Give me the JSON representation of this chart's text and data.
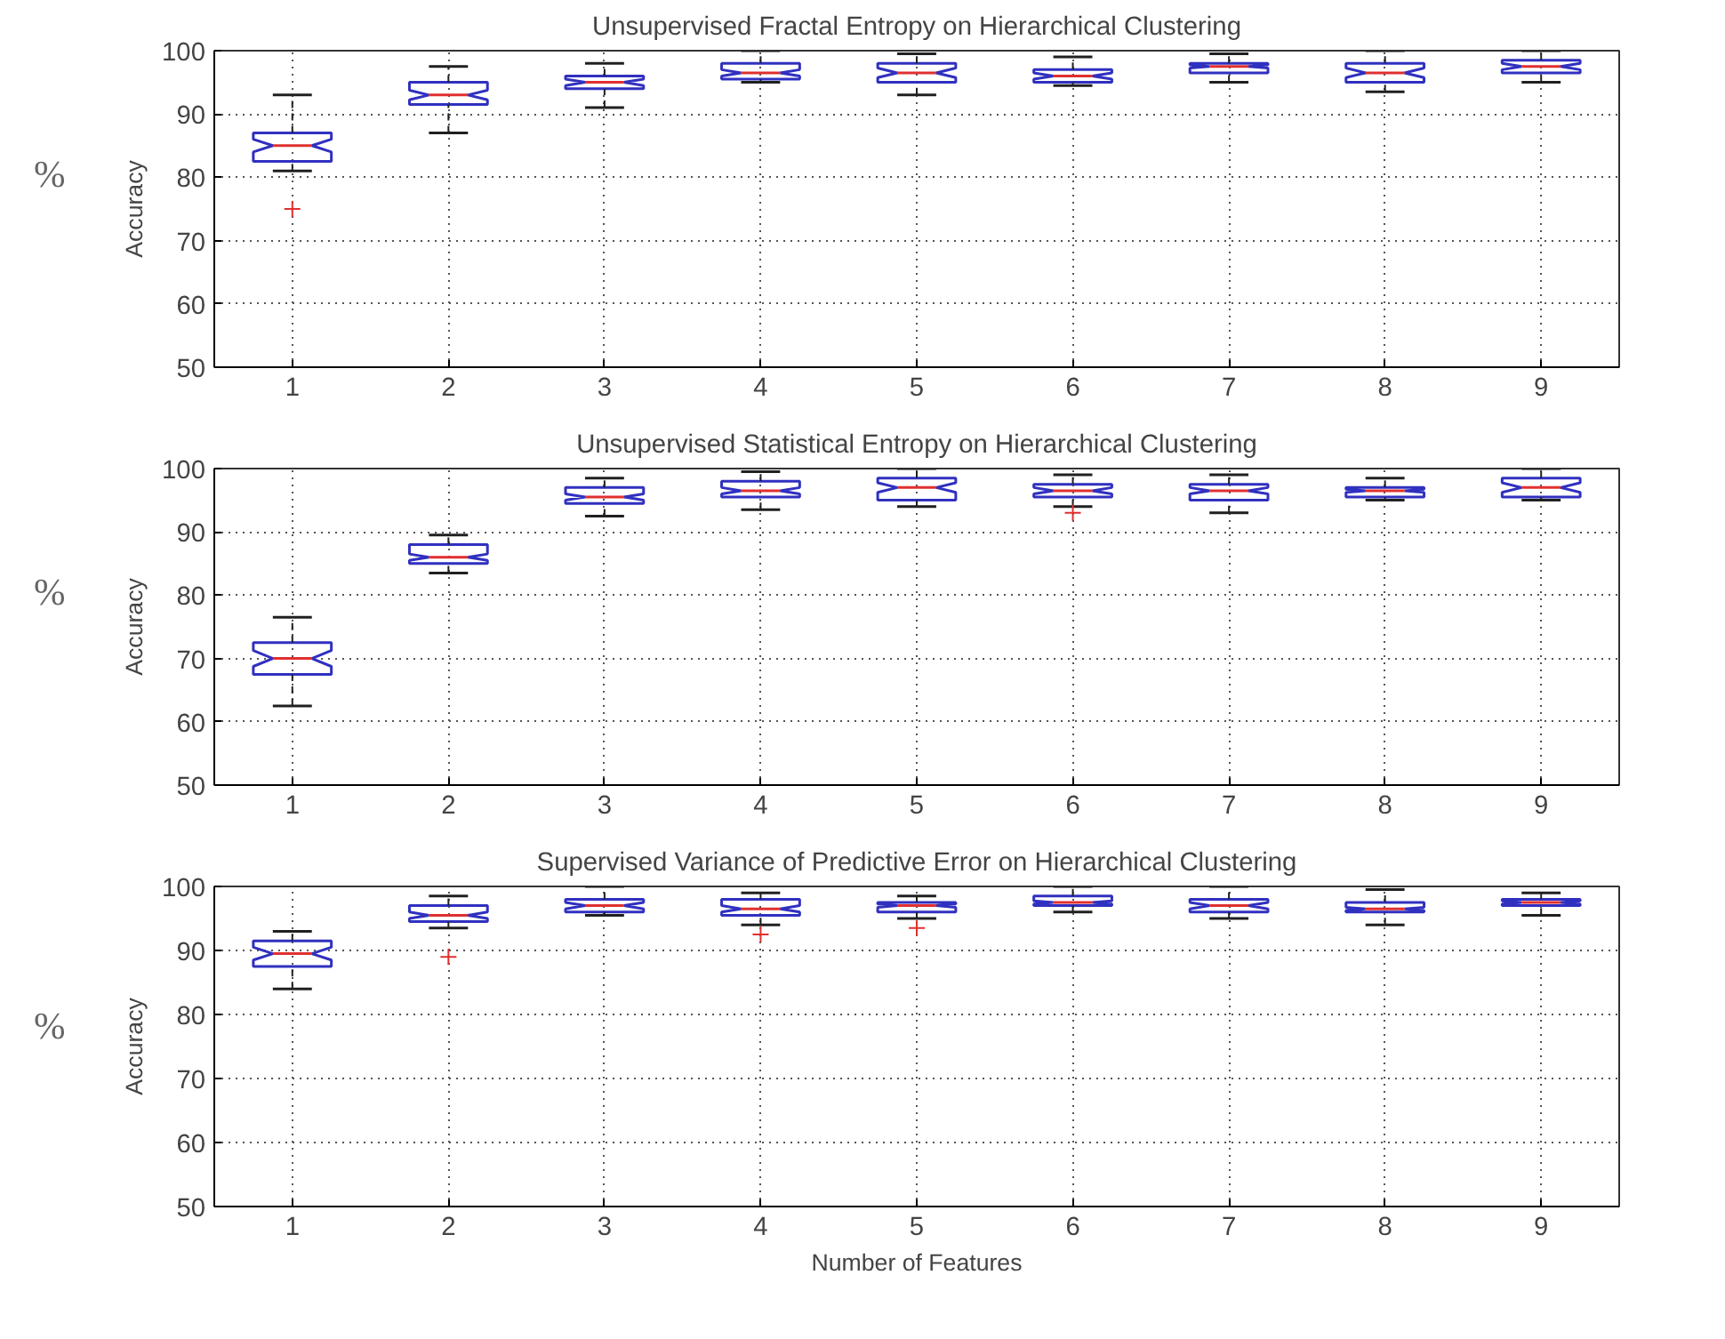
{
  "chart_data": [
    {
      "type": "box",
      "title": "Unsupervised Fractal Entropy on Hierarchical Clustering",
      "ylabel": "Accuracy",
      "annotations": [
        "%"
      ],
      "categories": [
        "1",
        "2",
        "3",
        "4",
        "5",
        "6",
        "7",
        "8",
        "9"
      ],
      "ylim": [
        50,
        100
      ],
      "yticks": [
        50,
        60,
        70,
        80,
        90,
        100
      ],
      "grid": true,
      "boxes": [
        {
          "low": 81,
          "q1": 82.5,
          "median": 85,
          "q3": 87,
          "high": 93,
          "outliers": [
            75
          ]
        },
        {
          "low": 87,
          "q1": 91.5,
          "median": 93,
          "q3": 95,
          "high": 97.5
        },
        {
          "low": 91,
          "q1": 94,
          "median": 95,
          "q3": 96,
          "high": 98
        },
        {
          "low": 95,
          "q1": 95.5,
          "median": 96.5,
          "q3": 98,
          "high": 100
        },
        {
          "low": 93,
          "q1": 95,
          "median": 96.5,
          "q3": 98,
          "high": 99.5
        },
        {
          "low": 94.5,
          "q1": 95,
          "median": 96,
          "q3": 97,
          "high": 99
        },
        {
          "low": 95,
          "q1": 96.5,
          "median": 97.5,
          "q3": 98,
          "high": 99.5
        },
        {
          "low": 93.5,
          "q1": 95,
          "median": 96.5,
          "q3": 98,
          "high": 100
        },
        {
          "low": 95,
          "q1": 96.5,
          "median": 97.5,
          "q3": 98.5,
          "high": 100
        }
      ]
    },
    {
      "type": "box",
      "title": "Unsupervised Statistical Entropy on Hierarchical Clustering",
      "ylabel": "Accuracy",
      "annotations": [
        "%"
      ],
      "categories": [
        "1",
        "2",
        "3",
        "4",
        "5",
        "6",
        "7",
        "8",
        "9"
      ],
      "ylim": [
        50,
        100
      ],
      "yticks": [
        50,
        60,
        70,
        80,
        90,
        100
      ],
      "grid": true,
      "boxes": [
        {
          "low": 62.5,
          "q1": 67.5,
          "median": 70,
          "q3": 72.5,
          "high": 76.5
        },
        {
          "low": 83.5,
          "q1": 85,
          "median": 86,
          "q3": 88,
          "high": 89.5
        },
        {
          "low": 92.5,
          "q1": 94.5,
          "median": 95.5,
          "q3": 97,
          "high": 98.5
        },
        {
          "low": 93.5,
          "q1": 95.5,
          "median": 96.5,
          "q3": 98,
          "high": 99.5
        },
        {
          "low": 94,
          "q1": 95,
          "median": 97,
          "q3": 98.5,
          "high": 100
        },
        {
          "low": 94,
          "q1": 95.5,
          "median": 96.5,
          "q3": 97.5,
          "high": 99,
          "outliers": [
            93
          ]
        },
        {
          "low": 93,
          "q1": 95,
          "median": 96.5,
          "q3": 97.5,
          "high": 99
        },
        {
          "low": 95,
          "q1": 95.5,
          "median": 96.5,
          "q3": 97,
          "high": 98.5
        },
        {
          "low": 95,
          "q1": 95.5,
          "median": 97,
          "q3": 98.5,
          "high": 100
        }
      ]
    },
    {
      "type": "box",
      "title": "Supervised Variance of Predictive Error on Hierarchical Clustering",
      "xlabel": "Number of Features",
      "ylabel": "Accuracy",
      "annotations": [
        "%"
      ],
      "categories": [
        "1",
        "2",
        "3",
        "4",
        "5",
        "6",
        "7",
        "8",
        "9"
      ],
      "ylim": [
        50,
        100
      ],
      "yticks": [
        50,
        60,
        70,
        80,
        90,
        100
      ],
      "grid": true,
      "boxes": [
        {
          "low": 84,
          "q1": 87.5,
          "median": 89.5,
          "q3": 91.5,
          "high": 93
        },
        {
          "low": 93.5,
          "q1": 94.5,
          "median": 95.5,
          "q3": 97,
          "high": 98.5,
          "outliers": [
            89
          ]
        },
        {
          "low": 95.5,
          "q1": 96,
          "median": 97,
          "q3": 98,
          "high": 100
        },
        {
          "low": 94,
          "q1": 95.5,
          "median": 96.5,
          "q3": 98,
          "high": 99,
          "outliers": [
            92.5
          ]
        },
        {
          "low": 95,
          "q1": 96,
          "median": 97,
          "q3": 97.5,
          "high": 98.5,
          "outliers": [
            93.5
          ]
        },
        {
          "low": 96,
          "q1": 97,
          "median": 97.5,
          "q3": 98.5,
          "high": 100
        },
        {
          "low": 95,
          "q1": 96,
          "median": 97,
          "q3": 98,
          "high": 100
        },
        {
          "low": 94,
          "q1": 96,
          "median": 96.5,
          "q3": 97.5,
          "high": 99.5
        },
        {
          "low": 95.5,
          "q1": 97,
          "median": 97.5,
          "q3": 98,
          "high": 99
        }
      ]
    }
  ]
}
